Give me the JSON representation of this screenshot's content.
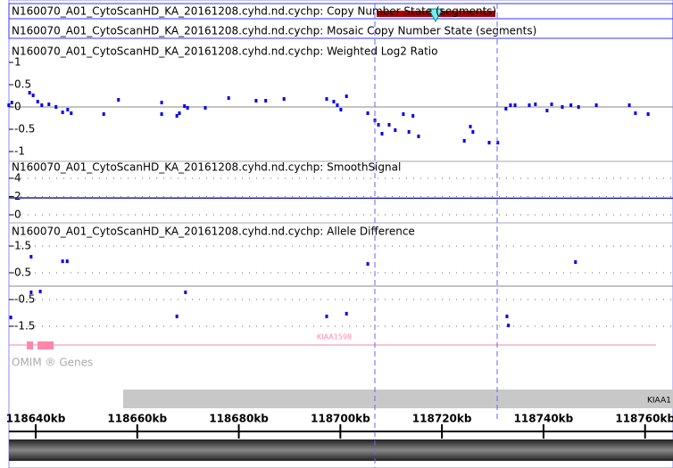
{
  "header": {
    "rows": [
      "N160070_A01_CytoScanHD_KA_20161208.cyhd.nd.cychp: Copy Number State (segments)",
      "N160070_A01_CytoScanHD_KA_20161208.cyhd.nd.cychp: Mosaic Copy Number State (segments)"
    ]
  },
  "view": {
    "start_kb": 118634.73,
    "end_kb": 118765.5
  },
  "tracks": [
    {
      "title": "N160070_A01_CytoScanHD_KA_20161208.cyhd.nd.cychp: Weighted Log2 Ratio",
      "ylim": [
        -1,
        1
      ],
      "yticks": [
        1,
        0.5,
        0,
        -0.5,
        -1
      ],
      "x": [
        118634.7,
        118635.3,
        118638.8,
        118639.5,
        118640.4,
        118641.2,
        118642.6,
        118644.0,
        118645.3,
        118646.3,
        118647.0,
        118653.4,
        118656.3,
        118664.8,
        118664.8,
        118667.8,
        118668.3,
        118669.3,
        118669.9,
        118673.4,
        118678.0,
        118683.4,
        118685.3,
        118688.9,
        118697.3,
        118698.7,
        118699.4,
        118700.1,
        118701.2,
        118705.4,
        118706.8,
        118707.5,
        118708.2,
        118709.6,
        118710.8,
        118712.4,
        118713.5,
        118714.3,
        118715.4,
        118724.4,
        118725.6,
        118726.1,
        118729.3,
        118731.0,
        118732.6,
        118733.5,
        118734.4,
        118737.2,
        118738.4,
        118740.7,
        118741.6,
        118743.7,
        118745.4,
        118746.9,
        118750.4,
        118756.9,
        118758.1,
        118760.6
      ],
      "values": [
        0.04,
        0.1,
        0.32,
        0.26,
        0.12,
        0.04,
        0.06,
        0,
        -0.12,
        -0.06,
        -0.14,
        -0.16,
        0.16,
        0.1,
        -0.16,
        -0.2,
        -0.14,
        0.02,
        -0.02,
        -0.02,
        0.2,
        0.14,
        0.14,
        0.18,
        0.18,
        0.12,
        0.04,
        -0.06,
        0.24,
        -0.14,
        -0.3,
        -0.4,
        -0.6,
        -0.4,
        -0.52,
        -0.16,
        -0.56,
        -0.2,
        -0.66,
        -0.76,
        -0.44,
        -0.56,
        -0.8,
        -0.8,
        -0.04,
        0.04,
        0.04,
        0.04,
        0.06,
        -0.08,
        0.06,
        0,
        0.04,
        0,
        0.04,
        0.04,
        -0.14,
        -0.16
      ]
    },
    {
      "title": "N160070_A01_CytoScanHD_KA_20161208.cyhd.nd.cychp: SmoothSignal",
      "ylim": [
        0,
        4
      ],
      "yticks": [
        4,
        2,
        0
      ],
      "line": true,
      "x": [
        118634.7,
        118700.0,
        118765.5
      ],
      "values": [
        1.85,
        1.82,
        1.82
      ]
    },
    {
      "title": "N160070_A01_CytoScanHD_KA_20161208.cyhd.nd.cychp: Allele Difference",
      "ylim": [
        -1.5,
        1.5
      ],
      "yticks": [
        1.5,
        0.5,
        -0.5,
        -1.5
      ],
      "x": [
        118639.1,
        118645.3,
        118646.2,
        118705.4,
        118746.3,
        118639.1,
        118640.9,
        118669.5,
        118635.1,
        118667.8,
        118697.3,
        118701.2,
        118732.8,
        118733.1
      ],
      "values": [
        1.1,
        0.93,
        0.93,
        0.83,
        0.9,
        -0.23,
        -0.2,
        -0.23,
        -1.17,
        -1.13,
        -1.13,
        -1.03,
        -1.13,
        -1.47
      ]
    }
  ],
  "genes": {
    "label": "KIAA1598",
    "omim": "OMIM ® Genes",
    "refseq": "KIAA1"
  },
  "ruler": {
    "ticks": [
      {
        "value": 118640,
        "label": "118640kb"
      },
      {
        "value": 118660,
        "label": "118660kb"
      },
      {
        "value": 118680,
        "label": "118680kb"
      },
      {
        "value": 118700,
        "label": "118700kb"
      },
      {
        "value": 118720,
        "label": "118720kb"
      },
      {
        "value": 118740,
        "label": "118740kb"
      },
      {
        "value": 118760,
        "label": "118760kb"
      }
    ]
  }
}
